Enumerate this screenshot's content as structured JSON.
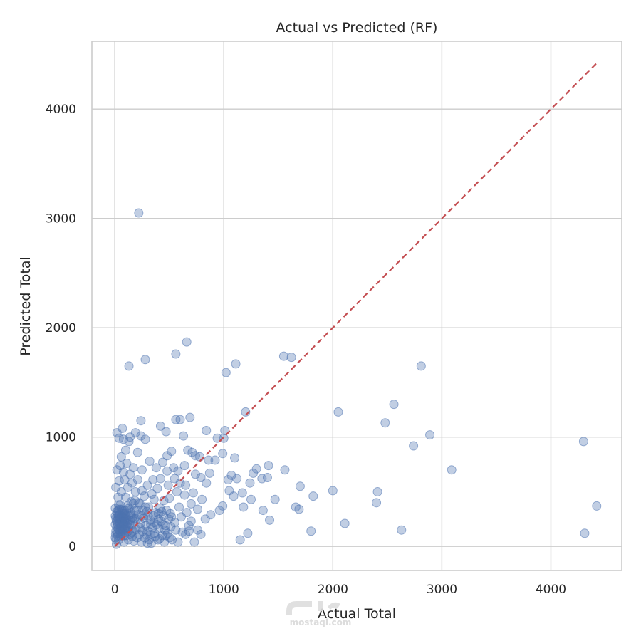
{
  "chart_data": {
    "type": "scatter",
    "title": "Actual vs Predicted (RF)",
    "xlabel": "Actual Total",
    "ylabel": "Predicted Total",
    "xlim": [
      -210,
      4650
    ],
    "ylim": [
      -220,
      4620
    ],
    "xticks": [
      0,
      1000,
      2000,
      3000,
      4000
    ],
    "yticks": [
      0,
      1000,
      2000,
      3000,
      4000
    ],
    "xtick_labels": [
      "0",
      "1000",
      "2000",
      "3000",
      "4000"
    ],
    "ytick_labels": [
      "0",
      "1000",
      "2000",
      "3000",
      "4000"
    ],
    "grid": true,
    "series": [
      {
        "color": "#4c72b0",
        "marker_alpha": 0.35,
        "points": [
          [
            220,
            3050
          ],
          [
            660,
            1870
          ],
          [
            280,
            1710
          ],
          [
            560,
            1760
          ],
          [
            130,
            1650
          ],
          [
            1020,
            1590
          ],
          [
            1110,
            1670
          ],
          [
            1550,
            1740
          ],
          [
            1620,
            1730
          ],
          [
            2810,
            1650
          ],
          [
            2560,
            1300
          ],
          [
            2050,
            1230
          ],
          [
            2480,
            1130
          ],
          [
            1200,
            1230
          ],
          [
            2890,
            1020
          ],
          [
            2740,
            920
          ],
          [
            3090,
            700
          ],
          [
            4300,
            960
          ],
          [
            4420,
            370
          ],
          [
            4310,
            120
          ],
          [
            2630,
            150
          ],
          [
            2400,
            400
          ],
          [
            2410,
            500
          ],
          [
            2000,
            510
          ],
          [
            2110,
            210
          ],
          [
            1800,
            140
          ],
          [
            1820,
            460
          ],
          [
            1700,
            550
          ],
          [
            1660,
            360
          ],
          [
            1690,
            340
          ],
          [
            1560,
            700
          ],
          [
            1470,
            430
          ],
          [
            1420,
            240
          ],
          [
            1400,
            630
          ],
          [
            1410,
            740
          ],
          [
            1360,
            330
          ],
          [
            1350,
            620
          ],
          [
            1300,
            710
          ],
          [
            1270,
            670
          ],
          [
            1250,
            430
          ],
          [
            1240,
            580
          ],
          [
            1220,
            120
          ],
          [
            1180,
            360
          ],
          [
            1170,
            490
          ],
          [
            1150,
            60
          ],
          [
            1120,
            620
          ],
          [
            1100,
            810
          ],
          [
            1090,
            460
          ],
          [
            1070,
            650
          ],
          [
            1050,
            510
          ],
          [
            1040,
            610
          ],
          [
            1010,
            1060
          ],
          [
            1000,
            990
          ],
          [
            990,
            370
          ],
          [
            990,
            850
          ],
          [
            960,
            330
          ],
          [
            940,
            990
          ],
          [
            920,
            790
          ],
          [
            880,
            290
          ],
          [
            870,
            670
          ],
          [
            860,
            790
          ],
          [
            840,
            1060
          ],
          [
            840,
            580
          ],
          [
            830,
            250
          ],
          [
            800,
            430
          ],
          [
            790,
            110
          ],
          [
            790,
            630
          ],
          [
            780,
            820
          ],
          [
            760,
            150
          ],
          [
            760,
            340
          ],
          [
            740,
            830
          ],
          [
            740,
            660
          ],
          [
            720,
            490
          ],
          [
            710,
            860
          ],
          [
            700,
            390
          ],
          [
            690,
            1180
          ],
          [
            680,
            190
          ],
          [
            670,
            880
          ],
          [
            660,
            310
          ],
          [
            650,
            560
          ],
          [
            640,
            470
          ],
          [
            640,
            740
          ],
          [
            630,
            1010
          ],
          [
            620,
            130
          ],
          [
            600,
            580
          ],
          [
            600,
            1160
          ],
          [
            590,
            360
          ],
          [
            580,
            690
          ],
          [
            570,
            500
          ],
          [
            560,
            1160
          ],
          [
            550,
            220
          ],
          [
            550,
            620
          ],
          [
            540,
            720
          ],
          [
            520,
            870
          ],
          [
            510,
            300
          ],
          [
            500,
            440
          ],
          [
            490,
            560
          ],
          [
            480,
            830
          ],
          [
            480,
            690
          ],
          [
            470,
            1050
          ],
          [
            460,
            150
          ],
          [
            450,
            420
          ],
          [
            440,
            770
          ],
          [
            430,
            320
          ],
          [
            420,
            1100
          ],
          [
            420,
            620
          ],
          [
            410,
            70
          ],
          [
            400,
            250
          ],
          [
            390,
            530
          ],
          [
            380,
            720
          ],
          [
            370,
            90
          ],
          [
            360,
            430
          ],
          [
            350,
            610
          ],
          [
            340,
            480
          ],
          [
            330,
            200
          ],
          [
            320,
            780
          ],
          [
            310,
            360
          ],
          [
            300,
            560
          ],
          [
            300,
            280
          ],
          [
            290,
            110
          ],
          [
            280,
            980
          ],
          [
            270,
            460
          ],
          [
            260,
            330
          ],
          [
            250,
            700
          ],
          [
            250,
            510
          ],
          [
            240,
            1010
          ],
          [
            240,
            1150
          ],
          [
            230,
            170
          ],
          [
            220,
            400
          ],
          [
            210,
            610
          ],
          [
            210,
            860
          ],
          [
            200,
            250
          ],
          [
            190,
            1040
          ],
          [
            190,
            500
          ],
          [
            180,
            330
          ],
          [
            170,
            140
          ],
          [
            170,
            720
          ],
          [
            160,
            580
          ],
          [
            150,
            410
          ],
          [
            140,
            660
          ],
          [
            140,
            1000
          ],
          [
            130,
            280
          ],
          [
            130,
            960
          ],
          [
            120,
            540
          ],
          [
            110,
            180
          ],
          [
            110,
            760
          ],
          [
            100,
            450
          ],
          [
            100,
            880
          ],
          [
            90,
            330
          ],
          [
            90,
            610
          ],
          [
            80,
            680
          ],
          [
            80,
            980
          ],
          [
            70,
            230
          ],
          [
            70,
            1080
          ],
          [
            60,
            500
          ],
          [
            60,
            820
          ],
          [
            50,
            380
          ],
          [
            50,
            740
          ],
          [
            40,
            600
          ],
          [
            40,
            990
          ],
          [
            30,
            160
          ],
          [
            30,
            450
          ],
          [
            20,
            1040
          ],
          [
            20,
            700
          ],
          [
            10,
            260
          ],
          [
            10,
            540
          ],
          [
            5,
            80
          ],
          [
            5,
            350
          ],
          [
            15,
            20
          ],
          [
            25,
            120
          ],
          [
            35,
            60
          ],
          [
            45,
            220
          ],
          [
            55,
            90
          ],
          [
            65,
            300
          ],
          [
            75,
            150
          ],
          [
            85,
            40
          ],
          [
            95,
            250
          ],
          [
            105,
            100
          ],
          [
            115,
            370
          ],
          [
            125,
            60
          ],
          [
            135,
            200
          ],
          [
            145,
            310
          ],
          [
            155,
            130
          ],
          [
            165,
            240
          ],
          [
            175,
            50
          ],
          [
            185,
            420
          ],
          [
            195,
            160
          ],
          [
            205,
            80
          ],
          [
            215,
            290
          ],
          [
            225,
            110
          ],
          [
            235,
            210
          ],
          [
            245,
            40
          ],
          [
            255,
            140
          ],
          [
            265,
            260
          ],
          [
            275,
            80
          ],
          [
            285,
            190
          ],
          [
            295,
            320
          ],
          [
            305,
            140
          ],
          [
            315,
            60
          ],
          [
            325,
            240
          ],
          [
            335,
            30
          ],
          [
            345,
            170
          ],
          [
            355,
            280
          ],
          [
            365,
            120
          ],
          [
            375,
            310
          ],
          [
            385,
            200
          ],
          [
            395,
            60
          ],
          [
            405,
            160
          ],
          [
            415,
            350
          ],
          [
            425,
            230
          ],
          [
            435,
            100
          ],
          [
            445,
            280
          ],
          [
            455,
            40
          ],
          [
            465,
            190
          ],
          [
            475,
            330
          ],
          [
            485,
            120
          ],
          [
            495,
            250
          ],
          [
            505,
            80
          ],
          [
            515,
            180
          ],
          [
            525,
            60
          ],
          [
            20,
            300
          ],
          [
            20,
            180
          ],
          [
            30,
            260
          ],
          [
            30,
            330
          ],
          [
            40,
            210
          ],
          [
            40,
            290
          ],
          [
            50,
            140
          ],
          [
            50,
            260
          ],
          [
            60,
            180
          ],
          [
            60,
            340
          ],
          [
            70,
            270
          ],
          [
            70,
            120
          ],
          [
            80,
            210
          ],
          [
            80,
            300
          ],
          [
            90,
            160
          ],
          [
            90,
            230
          ],
          [
            100,
            280
          ],
          [
            100,
            190
          ],
          [
            110,
            250
          ],
          [
            110,
            330
          ],
          [
            120,
            140
          ],
          [
            120,
            210
          ],
          [
            130,
            170
          ],
          [
            130,
            350
          ],
          [
            140,
            240
          ],
          [
            140,
            110
          ],
          [
            150,
            290
          ],
          [
            150,
            200
          ],
          [
            160,
            260
          ],
          [
            160,
            90
          ],
          [
            10,
            140
          ],
          [
            15,
            230
          ],
          [
            25,
            200
          ],
          [
            35,
            380
          ],
          [
            45,
            290
          ],
          [
            55,
            170
          ],
          [
            65,
            230
          ],
          [
            75,
            260
          ],
          [
            85,
            200
          ],
          [
            95,
            170
          ],
          [
            5,
            200
          ],
          [
            5,
            280
          ],
          [
            8,
            110
          ],
          [
            12,
            60
          ],
          [
            18,
            320
          ],
          [
            22,
            240
          ],
          [
            28,
            100
          ],
          [
            32,
            280
          ],
          [
            38,
            150
          ],
          [
            42,
            340
          ],
          [
            48,
            250
          ],
          [
            52,
            110
          ],
          [
            58,
            210
          ],
          [
            62,
            280
          ],
          [
            68,
            140
          ],
          [
            72,
            330
          ],
          [
            78,
            180
          ],
          [
            82,
            260
          ],
          [
            88,
            100
          ],
          [
            92,
            300
          ],
          [
            580,
            40
          ],
          [
            610,
            270
          ],
          [
            650,
            110
          ],
          [
            700,
            230
          ],
          [
            730,
            40
          ],
          [
            680,
            140
          ],
          [
            560,
            150
          ],
          [
            520,
            270
          ],
          [
            470,
            100
          ],
          [
            440,
            200
          ],
          [
            400,
            300
          ],
          [
            360,
            220
          ],
          [
            330,
            110
          ],
          [
            300,
            30
          ],
          [
            280,
            360
          ],
          [
            250,
            280
          ],
          [
            230,
            390
          ],
          [
            200,
            330
          ],
          [
            180,
            250
          ],
          [
            170,
            390
          ]
        ]
      },
      {
        "style": "dashed",
        "color": "#c44e52",
        "line": [
          [
            0,
            0
          ],
          [
            4420,
            4420
          ]
        ]
      }
    ]
  }
}
